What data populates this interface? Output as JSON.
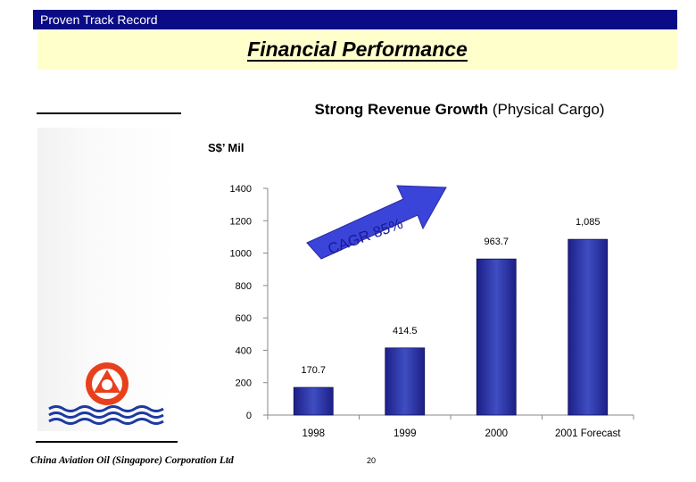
{
  "header": {
    "section_label": "Proven Track Record",
    "page_title": "Financial Performance"
  },
  "footer": {
    "company": "China Aviation Oil (Singapore) Corporation Ltd",
    "page_number": "20"
  },
  "chart_data": {
    "type": "bar",
    "title": "Strong Revenue Growth",
    "subtitle": "(Physical Cargo)",
    "ylabel": "S$’ Mil",
    "xlabel": "",
    "categories": [
      "1998",
      "1999",
      "2000",
      "2001 Forecast"
    ],
    "values": [
      170.7,
      414.5,
      963.7,
      1085
    ],
    "data_labels": [
      "170.7",
      "414.5",
      "963.7",
      "1,085"
    ],
    "ylim": [
      0,
      1400
    ],
    "yticks": [
      0,
      200,
      400,
      600,
      800,
      1000,
      1200,
      1400
    ],
    "grid": false,
    "annotation": "CAGR 85%",
    "colors": {
      "bar_dark": "#1c1f87",
      "bar_light": "#4a57cc",
      "arrow": "#3a44d8",
      "header": "#0b0b85",
      "title_band": "#ffffcc",
      "logo_red": "#e8401c",
      "logo_blue": "#1c3aa0"
    }
  },
  "logo": {
    "icon": "cao-logo-icon"
  }
}
